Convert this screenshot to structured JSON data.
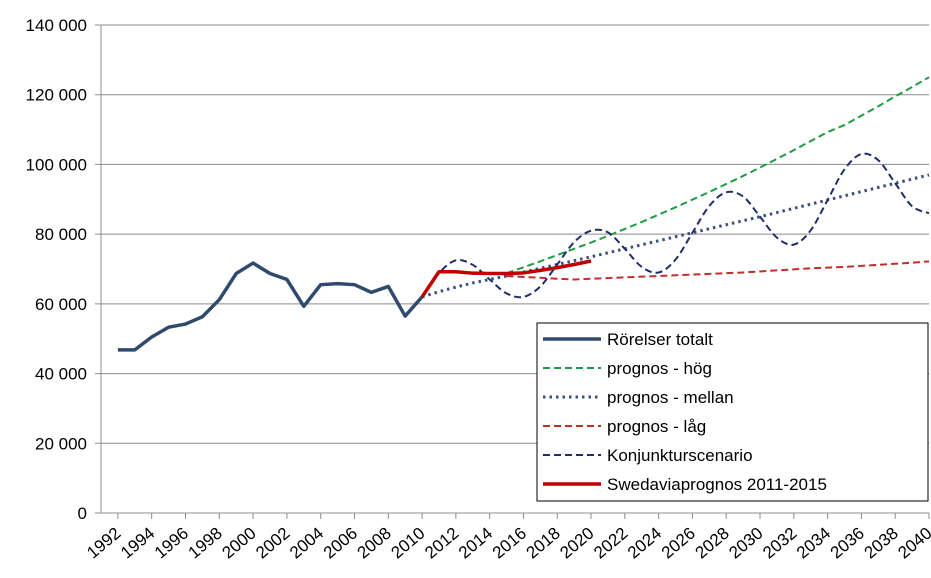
{
  "chart_data": {
    "type": "line",
    "x": [
      1992,
      1993,
      1994,
      1995,
      1996,
      1997,
      1998,
      1999,
      2000,
      2001,
      2002,
      2003,
      2004,
      2005,
      2006,
      2007,
      2008,
      2009,
      2010,
      2011,
      2012,
      2013,
      2014,
      2015,
      2016,
      2017,
      2018,
      2019,
      2020,
      2021,
      2022,
      2023,
      2024,
      2025,
      2026,
      2027,
      2028,
      2029,
      2030,
      2031,
      2032,
      2033,
      2034,
      2035,
      2036,
      2037,
      2038,
      2039,
      2040
    ],
    "xlim": [
      1991,
      2040
    ],
    "xticks": [
      1992,
      1994,
      1996,
      1998,
      2000,
      2002,
      2004,
      2006,
      2008,
      2010,
      2012,
      2014,
      2016,
      2018,
      2020,
      2022,
      2024,
      2026,
      2028,
      2030,
      2032,
      2034,
      2036,
      2038,
      2040
    ],
    "ylim": [
      0,
      140000
    ],
    "yticks": [
      0,
      {
        "value": 20000,
        "label": "20 000"
      },
      {
        "value": 40000,
        "label": "40 000"
      },
      {
        "value": 60000,
        "label": "60 000"
      },
      {
        "value": 80000,
        "label": "80 000"
      },
      {
        "value": 100000,
        "label": "100 000"
      },
      {
        "value": 120000,
        "label": "120 000"
      },
      {
        "value": 140000,
        "label": "140 000"
      }
    ],
    "grid": true,
    "legend": "lower-right",
    "series": [
      {
        "name": "Rörelser totalt",
        "color": "#2f4a6d",
        "dash": "solid",
        "width": 3.5,
        "values": [
          46800,
          46800,
          50500,
          53300,
          54200,
          56300,
          61200,
          68700,
          71700,
          68700,
          67000,
          59300,
          65500,
          65800,
          65500,
          63300,
          65000,
          56500,
          62000,
          null,
          null,
          null,
          null,
          null,
          null,
          null,
          null,
          null,
          null,
          null,
          null,
          null,
          null,
          null,
          null,
          null,
          null,
          null,
          null,
          null,
          null,
          null,
          null,
          null,
          null,
          null,
          null,
          null,
          null
        ]
      },
      {
        "name": "prognos - hög",
        "color": "#1f9c45",
        "dash": "dashed",
        "width": 2,
        "values": [
          null,
          null,
          null,
          null,
          null,
          null,
          null,
          null,
          null,
          null,
          null,
          null,
          null,
          null,
          null,
          null,
          null,
          null,
          null,
          null,
          null,
          null,
          null,
          68800,
          70500,
          72200,
          74000,
          75800,
          77600,
          79500,
          81500,
          83500,
          85600,
          87700,
          89900,
          92100,
          94400,
          96700,
          99100,
          101600,
          104100,
          106700,
          109300,
          111300,
          114000,
          116700,
          119500,
          122200,
          125000
        ]
      },
      {
        "name": "prognos - mellan",
        "color": "#3a4f7a",
        "dash": "dotted",
        "width": 3,
        "values": [
          null,
          null,
          null,
          null,
          null,
          null,
          null,
          null,
          null,
          null,
          null,
          null,
          null,
          null,
          null,
          null,
          null,
          null,
          62000,
          63500,
          64800,
          66000,
          67000,
          68000,
          69100,
          70200,
          71300,
          72400,
          73500,
          74650,
          75800,
          76950,
          78100,
          79250,
          80400,
          81550,
          82700,
          83850,
          85000,
          86200,
          87400,
          88600,
          89800,
          91000,
          92200,
          93400,
          94600,
          95800,
          97000
        ]
      },
      {
        "name": "prognos - låg",
        "color": "#c0302a",
        "dash": "dashed",
        "width": 2,
        "values": [
          null,
          null,
          null,
          null,
          null,
          null,
          null,
          null,
          null,
          null,
          null,
          null,
          null,
          null,
          null,
          null,
          null,
          null,
          null,
          null,
          null,
          null,
          null,
          68000,
          67700,
          67500,
          67200,
          67000,
          67200,
          67400,
          67600,
          67800,
          68000,
          68200,
          68400,
          68600,
          68800,
          69000,
          69300,
          69600,
          69900,
          70200,
          70400,
          70600,
          70900,
          71200,
          71500,
          71800,
          72200
        ]
      },
      {
        "name": "Konjunkturscenario",
        "color": "#1f2d6b",
        "dash": "dashed",
        "width": 2,
        "smooth": true,
        "values": [
          null,
          null,
          null,
          null,
          null,
          null,
          null,
          null,
          null,
          null,
          null,
          null,
          null,
          null,
          null,
          null,
          null,
          null,
          62000,
          68800,
          72500,
          71200,
          67000,
          63000,
          62000,
          65000,
          71300,
          77700,
          81000,
          80500,
          75800,
          70600,
          69000,
          72700,
          80400,
          88100,
          92000,
          90800,
          85000,
          79000,
          77000,
          81100,
          89800,
          98600,
          103000,
          101200,
          94600,
          88000,
          86000
        ]
      },
      {
        "name": "Swedaviaprognos 2011-2015",
        "color": "#c00000",
        "dash": "solid",
        "width": 3.5,
        "values": [
          null,
          null,
          null,
          null,
          null,
          null,
          null,
          null,
          null,
          null,
          null,
          null,
          null,
          null,
          null,
          null,
          null,
          null,
          62000,
          69200,
          69200,
          68800,
          68700,
          68700,
          68900,
          69600,
          70400,
          71300,
          72300,
          null,
          null,
          null,
          null,
          null,
          null,
          null,
          null,
          null,
          null,
          null,
          null,
          null,
          null,
          null,
          null,
          null,
          null,
          null,
          null
        ]
      }
    ]
  }
}
